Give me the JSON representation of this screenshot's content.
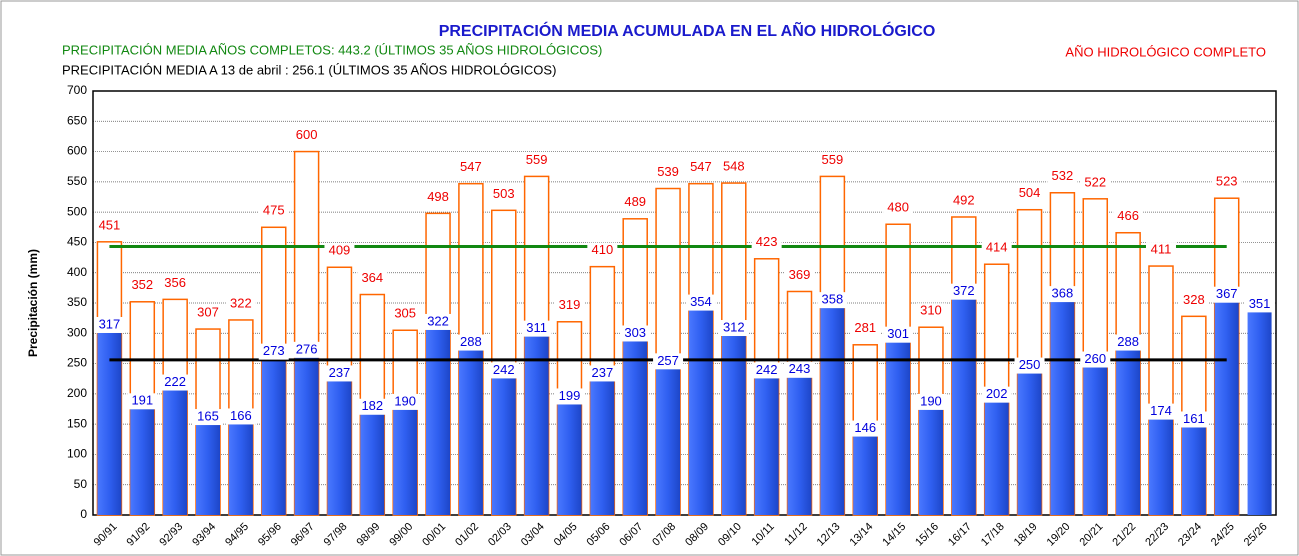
{
  "chart_data": {
    "type": "bar",
    "title": "PRECIPITACIÓN MEDIA ACUMULADA EN EL AÑO HIDROLÓGICO",
    "subtitle_complete": "PRECIPITACIÓN MEDIA AÑOS COMPLETOS: 443.2 (ÚLTIMOS 35 AÑOS HIDROLÓGICOS)",
    "subtitle_to_date": "PRECIPITACIÓN MEDIA A 13 de abril : 256.1 (ÚLTIMOS 35 AÑOS HIDROLÓGICOS)",
    "y_label": "Precipitación (mm)",
    "categories": [
      "90/91",
      "91/92",
      "92/93",
      "93/94",
      "94/95",
      "95/96",
      "96/97",
      "97/98",
      "98/99",
      "99/00",
      "00/01",
      "01/02",
      "02/03",
      "03/04",
      "04/05",
      "05/06",
      "06/07",
      "07/08",
      "08/09",
      "09/10",
      "10/11",
      "11/12",
      "12/13",
      "13/14",
      "14/15",
      "15/16",
      "16/17",
      "17/18",
      "18/19",
      "19/20",
      "20/21",
      "21/22",
      "22/23",
      "23/24",
      "24/25",
      "25/26"
    ],
    "series": [
      {
        "name": "AÑO HIDROLÓGICO COMPLETO",
        "color": "#ff6600",
        "label_color": "#ee0000",
        "values": [
          451,
          352,
          356,
          307,
          322,
          475,
          600,
          409,
          364,
          305,
          498,
          547,
          503,
          559,
          319,
          410,
          489,
          539,
          547,
          548,
          423,
          369,
          559,
          281,
          480,
          310,
          492,
          414,
          504,
          532,
          522,
          466,
          411,
          328,
          523,
          null
        ]
      },
      {
        "color": "#2f5ff0",
        "label_color": "#0000dd",
        "values": [
          317,
          191,
          222,
          165,
          166,
          273,
          276,
          237,
          182,
          190,
          322,
          288,
          242,
          311,
          199,
          237,
          303,
          257,
          354,
          312,
          242,
          243,
          358,
          146,
          301,
          190,
          372,
          202,
          250,
          368,
          260,
          288,
          174,
          161,
          367,
          351
        ]
      }
    ],
    "reference_lines": [
      {
        "value": 443.2,
        "color": "#118811"
      },
      {
        "value": 256.1,
        "color": "#000000"
      }
    ],
    "ylim": [
      0,
      700
    ],
    "yticks": [
      0,
      50,
      100,
      150,
      200,
      250,
      300,
      350,
      400,
      450,
      500,
      550,
      600,
      650,
      700
    ],
    "grid": true
  }
}
